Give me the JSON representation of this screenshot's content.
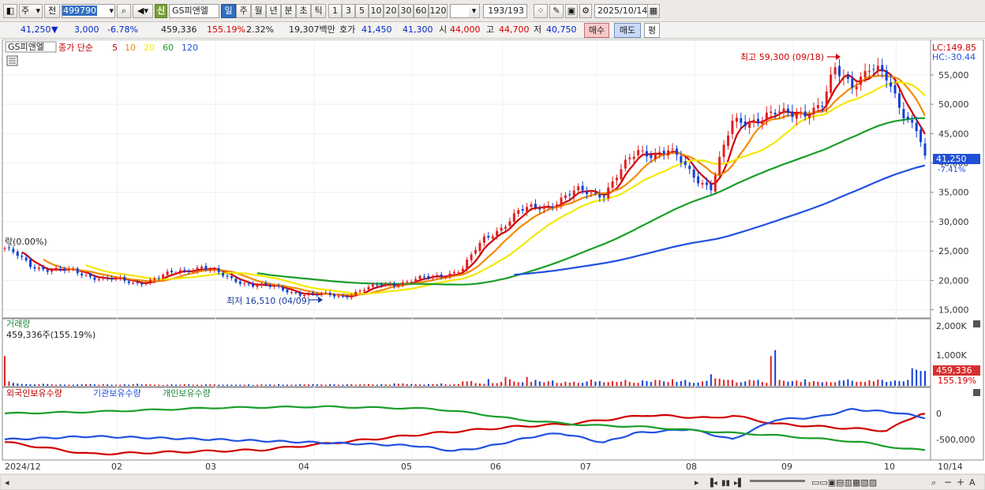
{
  "toolbar": {
    "chart_type": "주",
    "prev_label": "전",
    "code": "499790",
    "badge": "신",
    "stock_name": "GS피앤엘",
    "periods": [
      "일",
      "주",
      "월",
      "년",
      "분",
      "초",
      "틱"
    ],
    "active_period": "일",
    "intervals": [
      "1",
      "3",
      "5",
      "10",
      "20",
      "30",
      "60",
      "120"
    ],
    "count": "193/193",
    "date": "2025/10/14"
  },
  "quote": {
    "price": "41,250",
    "direction": "▼",
    "change": "3,000",
    "change_pct": "-6.78%",
    "volume": "459,336",
    "volume_ratio": "155.19%",
    "turnover_pct": "2.32%",
    "amount": "19,307백만",
    "hoga_label": "호가",
    "ask": "41,450",
    "bid": "41,300",
    "open_label": "시",
    "open": "44,000",
    "high_label": "고",
    "high": "44,700",
    "low_label": "저",
    "low": "40,750",
    "buy_label": "매수",
    "sell_label": "매도",
    "avg_label": "평"
  },
  "price_panel": {
    "stock_tag": "GS피앤엘",
    "legend_prefix": "종가 단순",
    "ma_labels": [
      "5",
      "10",
      "20",
      "60",
      "120"
    ],
    "ma_colors": [
      "#d00000",
      "#f08c00",
      "#f4e800",
      "#1a9e2a",
      "#2050e0"
    ],
    "lc": "LC:149.85",
    "hc": "HC:-30.44",
    "high_annot": "최고 59,300 (09/18)",
    "low_annot": "최저 16,510 (04/09)",
    "start_annot": "락(0.00%)",
    "last_price": "41,250",
    "last_pct": "-7.41%"
  },
  "volume_panel": {
    "title": "거래량",
    "value": "459,336주(155.19%)",
    "last": "459,336",
    "last_pct": "155.19%",
    "ticks": [
      "2,000K",
      "1,000K"
    ]
  },
  "holding_panel": {
    "legend": [
      "외국인보유수량",
      "기관보유수량",
      "개인보유수량"
    ],
    "colors": [
      "#d00000",
      "#2050e0",
      "#1a9e2a"
    ],
    "ticks": [
      "0",
      "-500,000"
    ]
  },
  "chart_data": {
    "type": "candlestick",
    "x_labels": [
      "2024/12",
      "02",
      "03",
      "04",
      "05",
      "06",
      "07",
      "08",
      "09",
      "10",
      "10/14"
    ],
    "price_axis": [
      15000,
      20000,
      25000,
      30000,
      35000,
      40000,
      45000,
      50000,
      55000
    ],
    "ylim": [
      14000,
      60500
    ],
    "price_tick_labels": [
      "15,000",
      "20,000",
      "25,000",
      "30,000",
      "35,000",
      "40,000",
      "45,000",
      "50,000",
      "55,000"
    ],
    "close_anchors": [
      [
        0,
        25500
      ],
      [
        6,
        22500
      ],
      [
        15,
        21500
      ],
      [
        30,
        19500
      ],
      [
        36,
        20500
      ],
      [
        46,
        22500
      ],
      [
        52,
        20300
      ],
      [
        62,
        18800
      ],
      [
        72,
        17500
      ],
      [
        79,
        17400
      ],
      [
        88,
        19200
      ],
      [
        100,
        20500
      ],
      [
        107,
        22000
      ],
      [
        112,
        27000
      ],
      [
        120,
        31500
      ],
      [
        127,
        33000
      ],
      [
        134,
        35000
      ],
      [
        140,
        35000
      ],
      [
        148,
        42000
      ],
      [
        155,
        42000
      ],
      [
        160,
        38500
      ],
      [
        165,
        36000
      ],
      [
        170,
        46500
      ],
      [
        176,
        48000
      ],
      [
        182,
        48000
      ],
      [
        186,
        49000
      ],
      [
        191,
        49500
      ],
      [
        194,
        55500
      ],
      [
        198,
        54000
      ],
      [
        202,
        56000
      ],
      [
        206,
        54000
      ],
      [
        210,
        49000
      ],
      [
        213,
        46000
      ],
      [
        215,
        41250
      ]
    ],
    "volume_k": [
      1000,
      150,
      100,
      80,
      60,
      60,
      50,
      50,
      60,
      70,
      60,
      50,
      40,
      50,
      40,
      40,
      40,
      50,
      50,
      60,
      60,
      50,
      40,
      60,
      50,
      40,
      40,
      40,
      50,
      40,
      60,
      70,
      50,
      60,
      50,
      40,
      40,
      30,
      40,
      50,
      40,
      40,
      60,
      50,
      40,
      40,
      40,
      50,
      50,
      50,
      40,
      40,
      40,
      40,
      40,
      40,
      40,
      50,
      30,
      40,
      50,
      40,
      50,
      40,
      60,
      40,
      40,
      40,
      40,
      60,
      50,
      50,
      60,
      50,
      50,
      40,
      60,
      50,
      40,
      40,
      50,
      60,
      40,
      50,
      50,
      60,
      50,
      40,
      60,
      50,
      40,
      80,
      70,
      80,
      60,
      60,
      60,
      50,
      40,
      60,
      60,
      60,
      80,
      50,
      40,
      60,
      60,
      150,
      150,
      160,
      90,
      80,
      70,
      230,
      90,
      90,
      130,
      300,
      220,
      150,
      120,
      120,
      300,
      130,
      200,
      150,
      120,
      150,
      180,
      100,
      90,
      140,
      110,
      140,
      100,
      100,
      150,
      210,
      140,
      160,
      120,
      120,
      160,
      130,
      140,
      200,
      130,
      100,
      100,
      180,
      160,
      130,
      200,
      190,
      150,
      130,
      220,
      130,
      160,
      200,
      120,
      100,
      110,
      150,
      170,
      390,
      250,
      240,
      200,
      200,
      200,
      110,
      120,
      150,
      200,
      180,
      200,
      130,
      100,
      1000,
      1200,
      200,
      170,
      140,
      160,
      180,
      130,
      220,
      130,
      160,
      140,
      120,
      140,
      120,
      120,
      180,
      180,
      220,
      170,
      130,
      140,
      130,
      190,
      150,
      210,
      200,
      130,
      150,
      180,
      160,
      150,
      200,
      590,
      540,
      500,
      500
    ]
  }
}
